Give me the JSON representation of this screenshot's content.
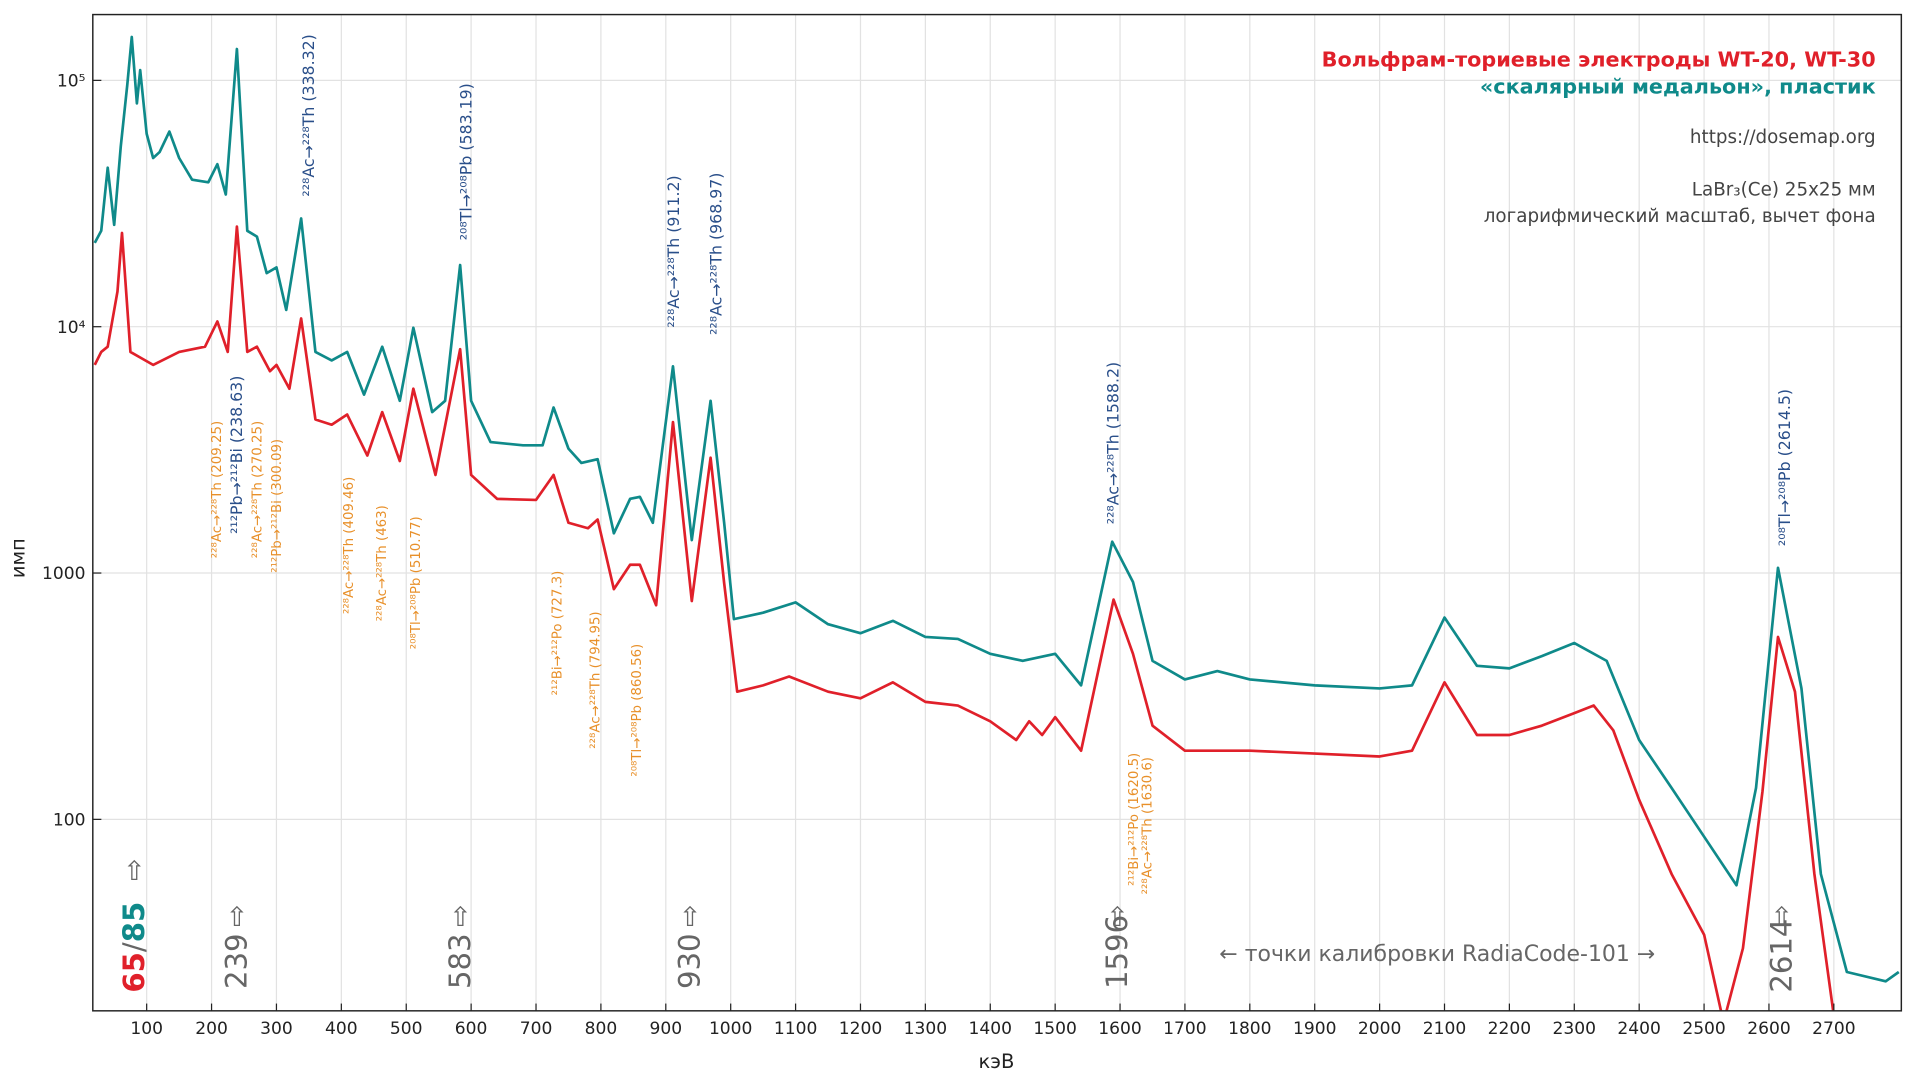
{
  "chart_data": {
    "type": "line",
    "x_label": "кэВ",
    "y_label": "имп",
    "xlim": [
      17,
      2804
    ],
    "ylim": [
      16.7,
      185000
    ],
    "log_y": true,
    "grid": true,
    "xticks": [
      100,
      200,
      300,
      400,
      500,
      600,
      700,
      800,
      900,
      1000,
      1100,
      1200,
      1300,
      1400,
      1500,
      1600,
      1700,
      1800,
      1900,
      2000,
      2100,
      2200,
      2300,
      2400,
      2500,
      2600,
      2700
    ],
    "yticks": [
      100,
      1000,
      {
        "value": 10000,
        "label": "10⁴"
      },
      {
        "value": 100000,
        "label": "10⁵"
      }
    ],
    "series": [
      {
        "name": "«скалярный медальон», пластик",
        "color": "#0f8a8a",
        "x": [
          20,
          30,
          40,
          50,
          60,
          70,
          77,
          85,
          90,
          100,
          110,
          120,
          135,
          150,
          170,
          195,
          209,
          222,
          239,
          255,
          270,
          285,
          300,
          315,
          338,
          360,
          385,
          409,
          435,
          463,
          490,
          511,
          540,
          560,
          583,
          600,
          630,
          680,
          710,
          727,
          750,
          770,
          795,
          820,
          845,
          860,
          880,
          911,
          940,
          969,
          990,
          1005,
          1050,
          1100,
          1150,
          1200,
          1250,
          1300,
          1350,
          1400,
          1450,
          1500,
          1540,
          1588,
          1620,
          1650,
          1700,
          1750,
          1800,
          1900,
          2000,
          2050,
          2100,
          2150,
          2200,
          2250,
          2300,
          2350,
          2400,
          2450,
          2500,
          2550,
          2580,
          2614,
          2650,
          2680,
          2720,
          2780,
          2800
        ],
        "values": [
          21900,
          24500,
          44200,
          25900,
          54000,
          95600,
          150000,
          80600,
          110000,
          60700,
          48400,
          51200,
          62000,
          48400,
          39500,
          38600,
          45700,
          34400,
          134000,
          24500,
          23200,
          16500,
          17400,
          11700,
          27500,
          7900,
          7300,
          7900,
          5300,
          8300,
          5000,
          9900,
          4500,
          5000,
          17800,
          5000,
          3400,
          3300,
          3300,
          4700,
          3200,
          2800,
          2900,
          1450,
          2000,
          2040,
          1600,
          6900,
          1360,
          5000,
          1600,
          650,
          690,
          760,
          620,
          570,
          640,
          550,
          540,
          470,
          440,
          470,
          350,
          1340,
          920,
          440,
          370,
          400,
          370,
          350,
          340,
          350,
          660,
          420,
          410,
          460,
          520,
          440,
          210,
          134,
          85,
          54,
          134,
          1050,
          340,
          60,
          24,
          22,
          24
        ]
      },
      {
        "name": "Вольфрам-ториевые электроды WT-20, WT-30",
        "color": "#e0202a",
        "x": [
          20,
          30,
          40,
          55,
          62,
          75,
          90,
          110,
          150,
          190,
          209,
          225,
          239,
          255,
          270,
          290,
          300,
          320,
          338,
          360,
          385,
          409,
          440,
          463,
          490,
          511,
          545,
          583,
          600,
          640,
          700,
          727,
          750,
          780,
          795,
          820,
          845,
          860,
          885,
          911,
          940,
          969,
          990,
          1010,
          1050,
          1090,
          1150,
          1200,
          1250,
          1300,
          1350,
          1400,
          1440,
          1460,
          1480,
          1500,
          1540,
          1590,
          1620,
          1650,
          1700,
          1800,
          1900,
          2000,
          2050,
          2100,
          2150,
          2200,
          2250,
          2300,
          2330,
          2360,
          2400,
          2450,
          2500,
          2530,
          2560,
          2590,
          2614,
          2640,
          2670,
          2700
        ],
        "values": [
          7000,
          7900,
          8300,
          13900,
          24000,
          7900,
          7500,
          7000,
          7900,
          8300,
          10500,
          7900,
          25500,
          7900,
          8300,
          6600,
          7000,
          5600,
          10800,
          4200,
          4000,
          4400,
          3000,
          4500,
          2850,
          5600,
          2500,
          8100,
          2500,
          2000,
          1980,
          2500,
          1600,
          1520,
          1650,
          860,
          1080,
          1080,
          740,
          4100,
          770,
          2940,
          910,
          330,
          350,
          380,
          330,
          310,
          360,
          300,
          290,
          250,
          210,
          250,
          220,
          260,
          190,
          780,
          470,
          240,
          190,
          190,
          185,
          180,
          190,
          360,
          220,
          220,
          240,
          270,
          290,
          230,
          120,
          60,
          34,
          15,
          30,
          130,
          550,
          330,
          60,
          16
        ]
      }
    ],
    "peak_labels": [
      "²²⁸Ac→²²⁸Th (338.32)",
      "²⁰⁸Tl→²⁰⁸Pb (583.19)",
      "²²⁸Ac→²²⁸Th (911.2)",
      "²²⁸Ac→²²⁸Th (968.97)",
      "²²⁸Ac→²²⁸Th (1588.2)",
      "²⁰⁸Tl→²⁰⁸Pb (2614.5)",
      "²¹²Pb→²¹²Bi (238.63)"
    ],
    "minor_labels": [
      "²²⁸Ac→²²⁸Th (209.25)",
      "²²⁸Ac→²²⁸Th (270.25)",
      "²¹²Pb→²¹²Bi (300.09)",
      "²²⁸Ac→²²⁸Th (409.46)",
      "²²⁸Ac→²²⁸Th (463)",
      "²⁰⁸Tl→²⁰⁸Pb (510.77)",
      "²¹²Bi→²¹²Po (727.3)",
      "²²⁸Ac→²²⁸Th (794.95)",
      "²⁰⁸Tl→²⁰⁸Pb (860.56)",
      "²¹²Bi→²¹²Po (1620.5)",
      "²²⁸Ac→²²⁸Th (1630.6)"
    ],
    "calibration": {
      "first": [
        "65",
        "/",
        "85"
      ],
      "points": [
        "239",
        "583",
        "930",
        "1596",
        "2614"
      ],
      "arrow": "⇧",
      "caption": "← точки калибровки RadiaCode-101 →"
    },
    "info": [
      "https://dosemap.org",
      "LaBr₃(Ce) 25x25 мм",
      "логарифмический масштаб, вычет фона"
    ]
  }
}
